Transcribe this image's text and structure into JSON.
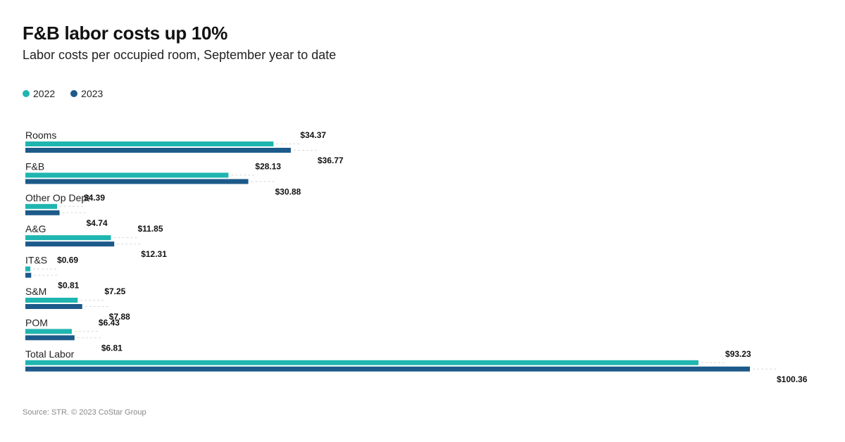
{
  "header": {
    "title": "F&B labor costs up 10%",
    "subtitle": "Labor costs per occupied room, September year to date"
  },
  "legend": [
    {
      "label": "2022",
      "color": "#1fb5b0"
    },
    {
      "label": "2023",
      "color": "#1c5a8a"
    }
  ],
  "source": "Source: STR. © 2023 CoStar Group",
  "chart_data": {
    "type": "bar",
    "orientation": "horizontal",
    "title": "F&B labor costs up 10%",
    "subtitle": "Labor costs per occupied room, September year to date",
    "categories": [
      "Rooms",
      "F&B",
      "Other Op Dept",
      "A&G",
      "IT&S",
      "S&M",
      "POM",
      "Total Labor"
    ],
    "series": [
      {
        "name": "2022",
        "color": "#1fb5b0",
        "values": [
          34.37,
          28.13,
          4.39,
          11.85,
          0.69,
          7.25,
          6.43,
          93.23
        ],
        "labels": [
          "$34.37",
          "$28.13",
          "$4.39",
          "$11.85",
          "$0.69",
          "$7.25",
          "$6.43",
          "$93.23"
        ]
      },
      {
        "name": "2023",
        "color": "#1c5a8a",
        "values": [
          36.77,
          30.88,
          4.74,
          12.31,
          0.81,
          7.88,
          6.81,
          100.36
        ],
        "labels": [
          "$36.77",
          "$30.88",
          "$4.74",
          "$12.31",
          "$0.81",
          "$7.88",
          "$6.81",
          "$100.36"
        ]
      }
    ],
    "xlim": [
      0,
      100.36
    ],
    "grid": false,
    "legend_position": "top-left"
  }
}
